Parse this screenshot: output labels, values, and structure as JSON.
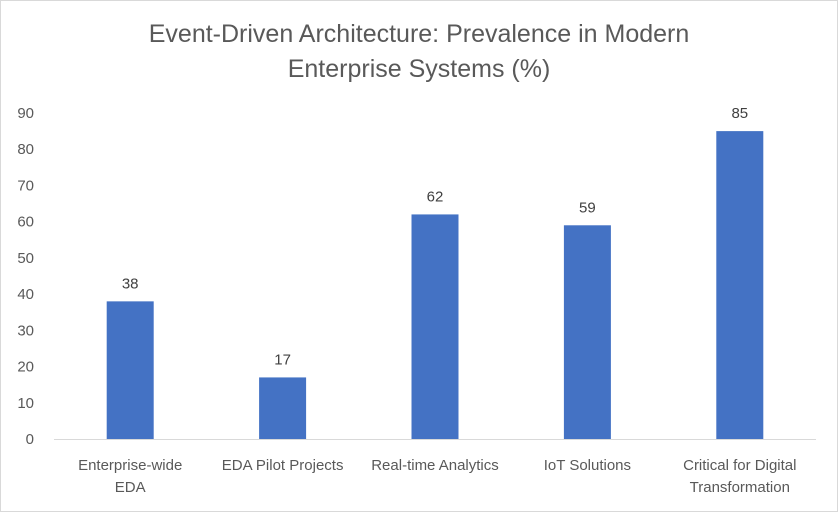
{
  "chart_data": {
    "type": "bar",
    "title_lines": [
      "Event-Driven Architecture: Prevalence in Modern",
      "Enterprise Systems (%)"
    ],
    "categories": [
      [
        "Enterprise-wide",
        "EDA"
      ],
      [
        "EDA Pilot Projects"
      ],
      [
        "Real-time Analytics"
      ],
      [
        "IoT Solutions"
      ],
      [
        "Critical for Digital",
        "Transformation"
      ]
    ],
    "values": [
      38,
      17,
      62,
      59,
      85
    ],
    "ylim": [
      0,
      90
    ],
    "yticks": [
      "0",
      "10",
      "20",
      "30",
      "40",
      "50",
      "60",
      "70",
      "80",
      "90"
    ],
    "grid": false,
    "legend": "none",
    "bar_color": "#4472c4"
  }
}
